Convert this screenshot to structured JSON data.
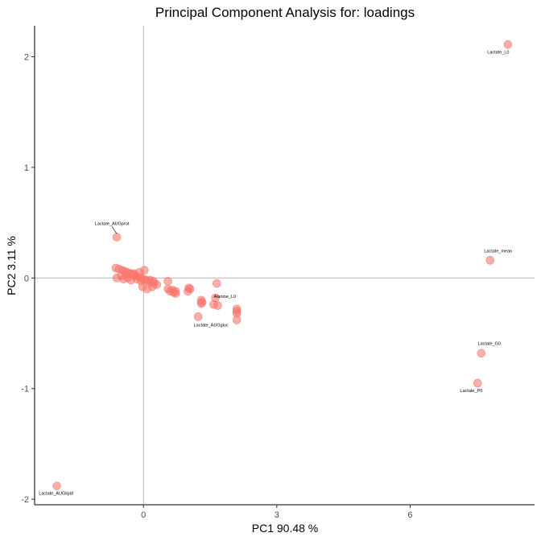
{
  "chart_data": {
    "type": "scatter",
    "title": "Principal Component Analysis for:  loadings",
    "xlabel": "PC1 90.48 %",
    "ylabel": "PC2 3.11 %",
    "xlim": [
      -2.45,
      8.8
    ],
    "ylim": [
      -2.05,
      2.28
    ],
    "x_ticks": [
      0,
      3,
      6
    ],
    "y_ticks": [
      -2,
      -1,
      0,
      1,
      2
    ],
    "grid": false,
    "reference_lines": {
      "x": 0,
      "y": 0
    },
    "point_color": "#F8766D",
    "labeled_points": [
      {
        "label": "Lactate_L0",
        "x": 8.2,
        "y": 2.11
      },
      {
        "label": "Lactate_mean",
        "x": 7.8,
        "y": 0.16
      },
      {
        "label": "Lactate_G0",
        "x": 7.6,
        "y": -0.68
      },
      {
        "label": "Lactate_P0",
        "x": 7.52,
        "y": -0.95
      },
      {
        "label": "Lactate_AUGprot",
        "x": -0.6,
        "y": 0.37
      },
      {
        "label": "Alanine_L0",
        "x": 1.65,
        "y": -0.05
      },
      {
        "label": "Lactate_AUGgluc",
        "x": 1.23,
        "y": -0.35
      },
      {
        "label": "Lactate_AUGlipid",
        "x": -1.95,
        "y": -1.88
      }
    ],
    "points": [
      {
        "x": -0.62,
        "y": 0.09
      },
      {
        "x": -0.55,
        "y": 0.08
      },
      {
        "x": -0.48,
        "y": 0.07
      },
      {
        "x": -0.42,
        "y": 0.06
      },
      {
        "x": -0.36,
        "y": 0.05
      },
      {
        "x": -0.3,
        "y": 0.04
      },
      {
        "x": -0.24,
        "y": 0.03
      },
      {
        "x": -0.18,
        "y": 0.02
      },
      {
        "x": -0.12,
        "y": 0.01
      },
      {
        "x": -0.06,
        "y": 0.0
      },
      {
        "x": 0.0,
        "y": -0.01
      },
      {
        "x": 0.06,
        "y": -0.02
      },
      {
        "x": 0.12,
        "y": -0.03
      },
      {
        "x": 0.18,
        "y": -0.04
      },
      {
        "x": 0.24,
        "y": -0.05
      },
      {
        "x": 0.3,
        "y": -0.06
      },
      {
        "x": -0.6,
        "y": 0.0
      },
      {
        "x": -0.5,
        "y": 0.02
      },
      {
        "x": -0.45,
        "y": -0.01
      },
      {
        "x": -0.4,
        "y": 0.03
      },
      {
        "x": -0.35,
        "y": 0.0
      },
      {
        "x": -0.28,
        "y": -0.02
      },
      {
        "x": -0.22,
        "y": 0.04
      },
      {
        "x": -0.15,
        "y": -0.01
      },
      {
        "x": -0.1,
        "y": 0.05
      },
      {
        "x": -0.05,
        "y": -0.03
      },
      {
        "x": 0.02,
        "y": 0.07
      },
      {
        "x": -0.02,
        "y": -0.08
      },
      {
        "x": 0.08,
        "y": -0.1
      },
      {
        "x": 0.15,
        "y": -0.02
      },
      {
        "x": 0.2,
        "y": -0.08
      },
      {
        "x": 0.22,
        "y": -0.03
      },
      {
        "x": 0.55,
        "y": -0.03
      },
      {
        "x": 0.55,
        "y": -0.1
      },
      {
        "x": 0.6,
        "y": -0.12
      },
      {
        "x": 0.65,
        "y": -0.11
      },
      {
        "x": 0.68,
        "y": -0.13
      },
      {
        "x": 0.72,
        "y": -0.12
      },
      {
        "x": 0.72,
        "y": -0.14
      },
      {
        "x": 1.02,
        "y": -0.09
      },
      {
        "x": 1.05,
        "y": -0.1
      },
      {
        "x": 1.0,
        "y": -0.12
      },
      {
        "x": 1.3,
        "y": -0.2
      },
      {
        "x": 1.32,
        "y": -0.22
      },
      {
        "x": 1.3,
        "y": -0.23
      },
      {
        "x": 1.62,
        "y": -0.18
      },
      {
        "x": 1.58,
        "y": -0.24
      },
      {
        "x": 1.67,
        "y": -0.25
      },
      {
        "x": 2.1,
        "y": -0.28
      },
      {
        "x": 2.1,
        "y": -0.3
      },
      {
        "x": 2.1,
        "y": -0.32
      },
      {
        "x": 2.1,
        "y": -0.38
      }
    ]
  }
}
